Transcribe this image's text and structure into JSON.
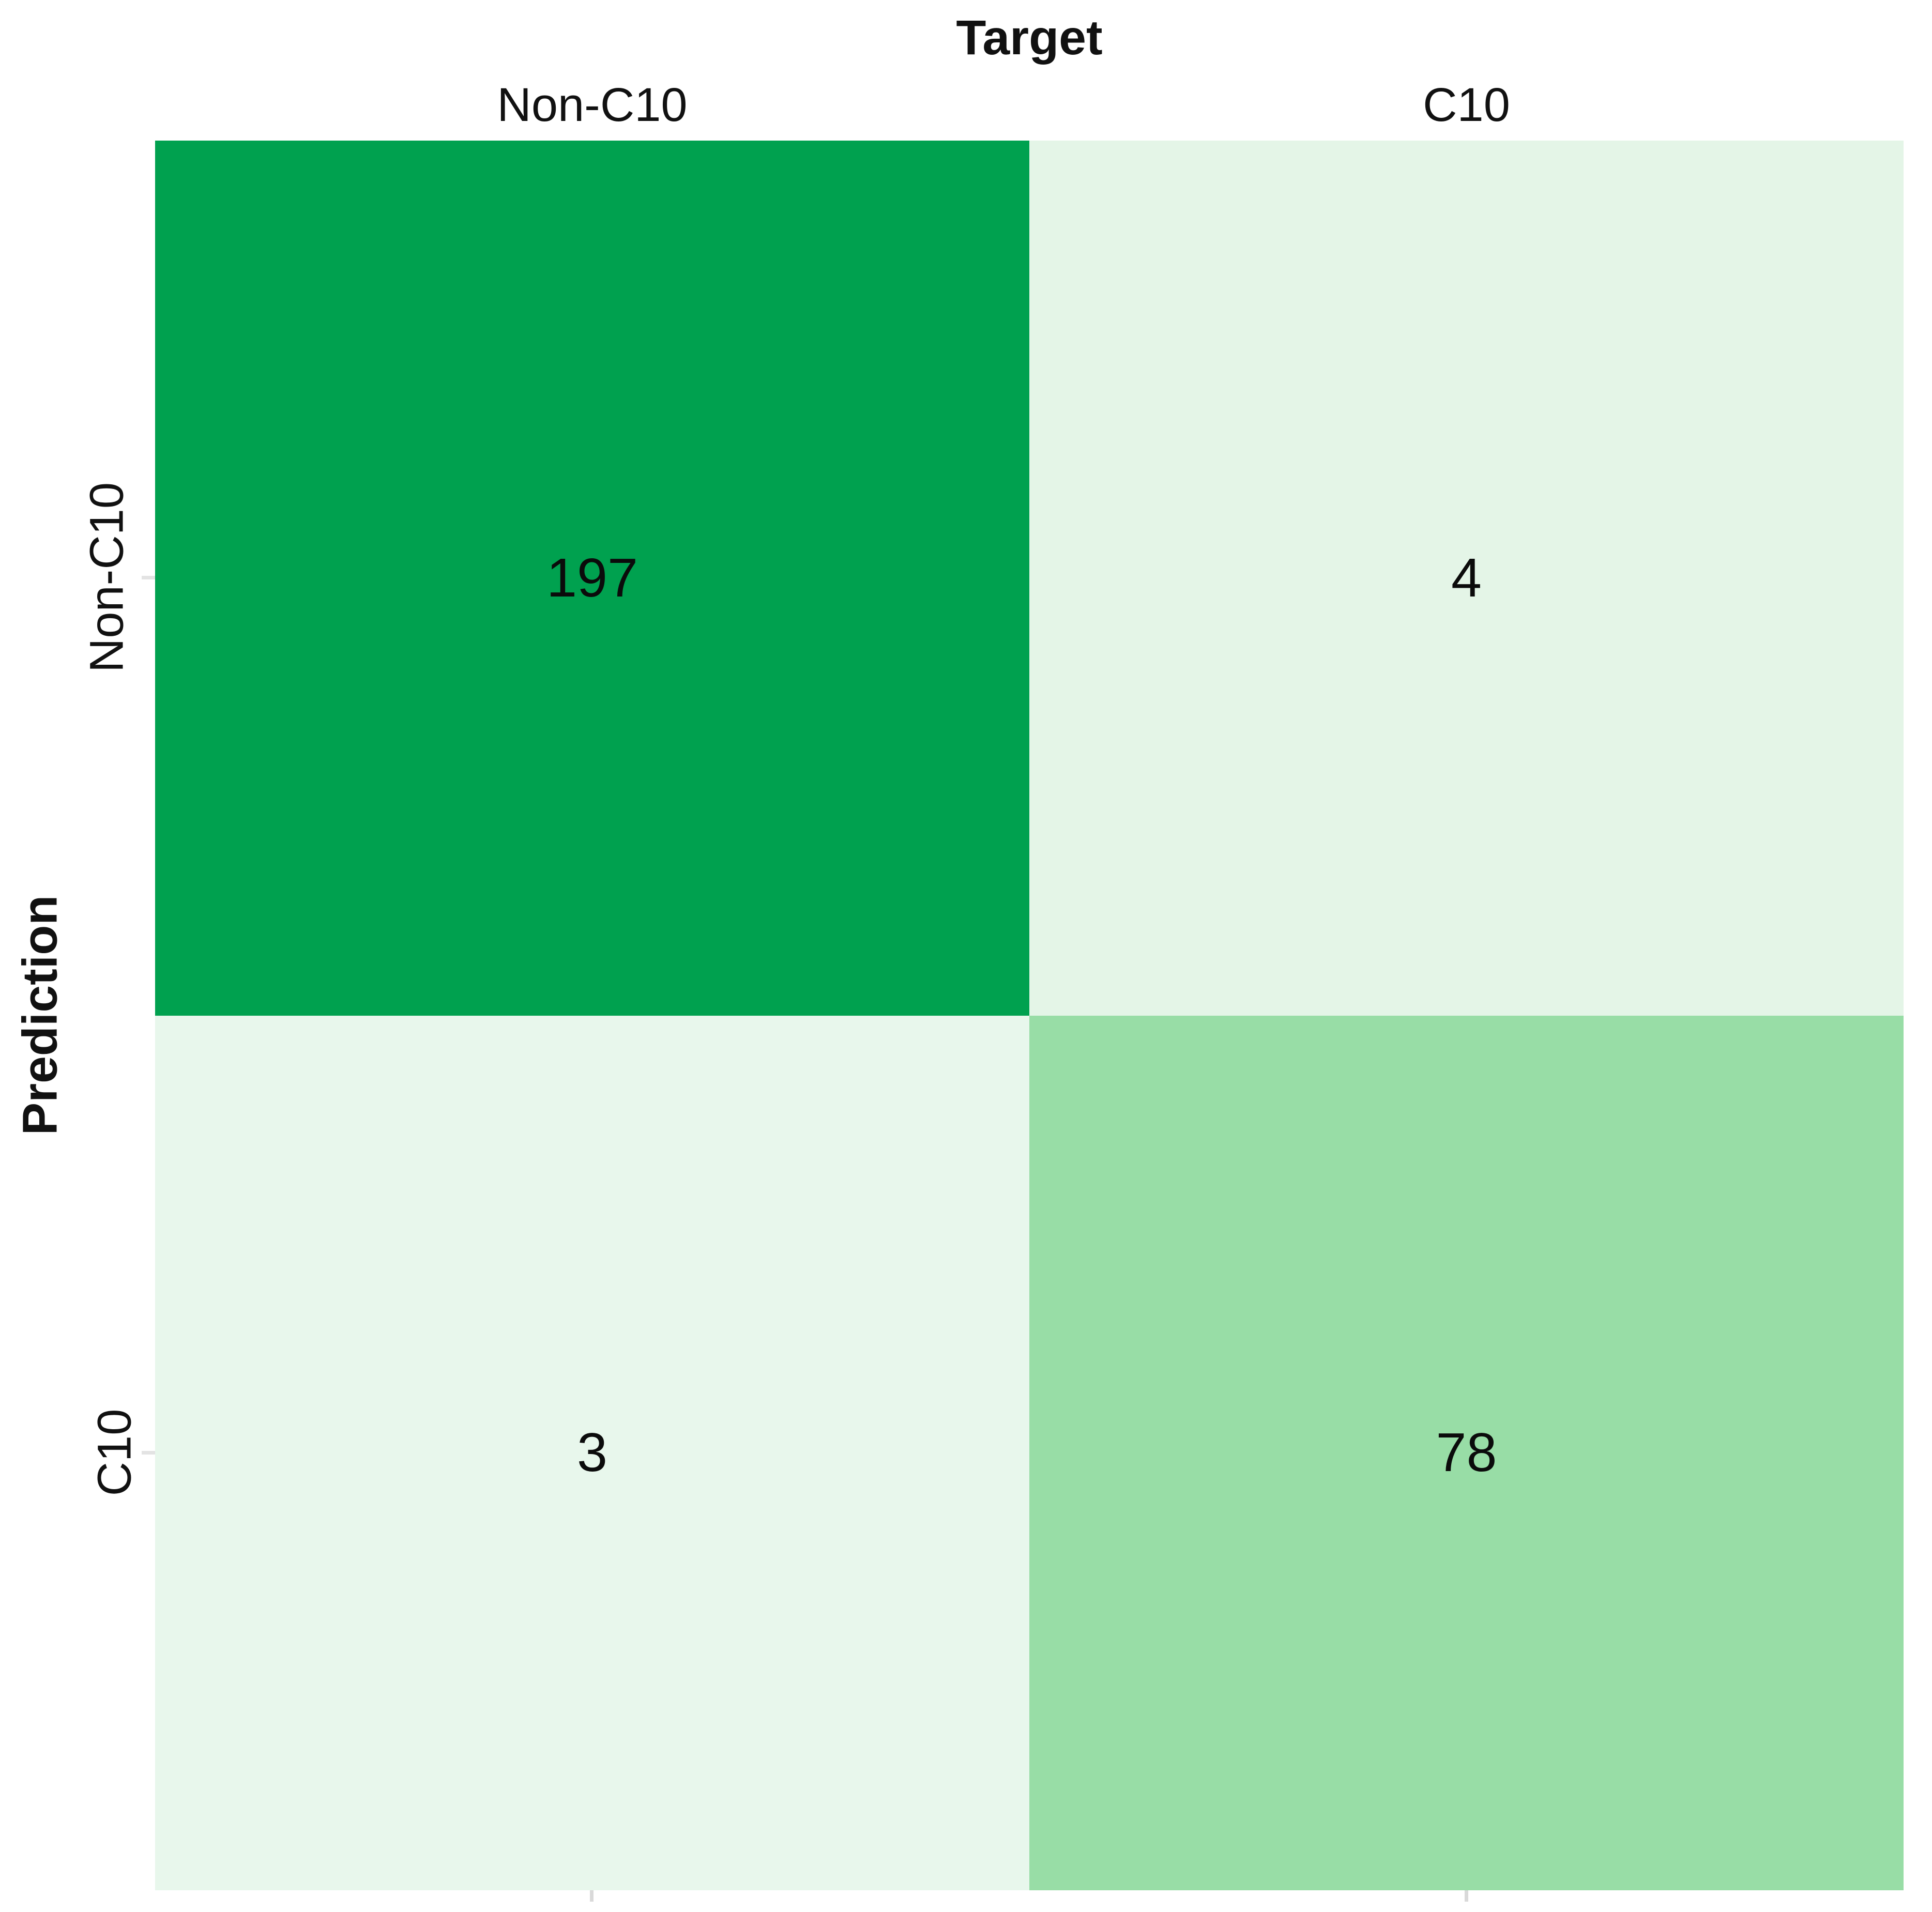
{
  "chart_data": {
    "type": "heatmap",
    "title": "Target",
    "xlabel": "Target",
    "ylabel": "Prediction",
    "x_categories": [
      "Non-C10",
      "C10"
    ],
    "y_categories": [
      "Non-C10",
      "C10"
    ],
    "values": [
      [
        197,
        4
      ],
      [
        3,
        78
      ]
    ],
    "cell_colors": [
      [
        "#00a14f",
        "#e4f5e7"
      ],
      [
        "#e8f7ec",
        "#98dda6"
      ]
    ],
    "colormap": "white-to-green",
    "legend": "none",
    "grid": false,
    "background": "#ffffff",
    "tick_color": "#d9d9d9",
    "text_color": "#0b0b0b"
  }
}
